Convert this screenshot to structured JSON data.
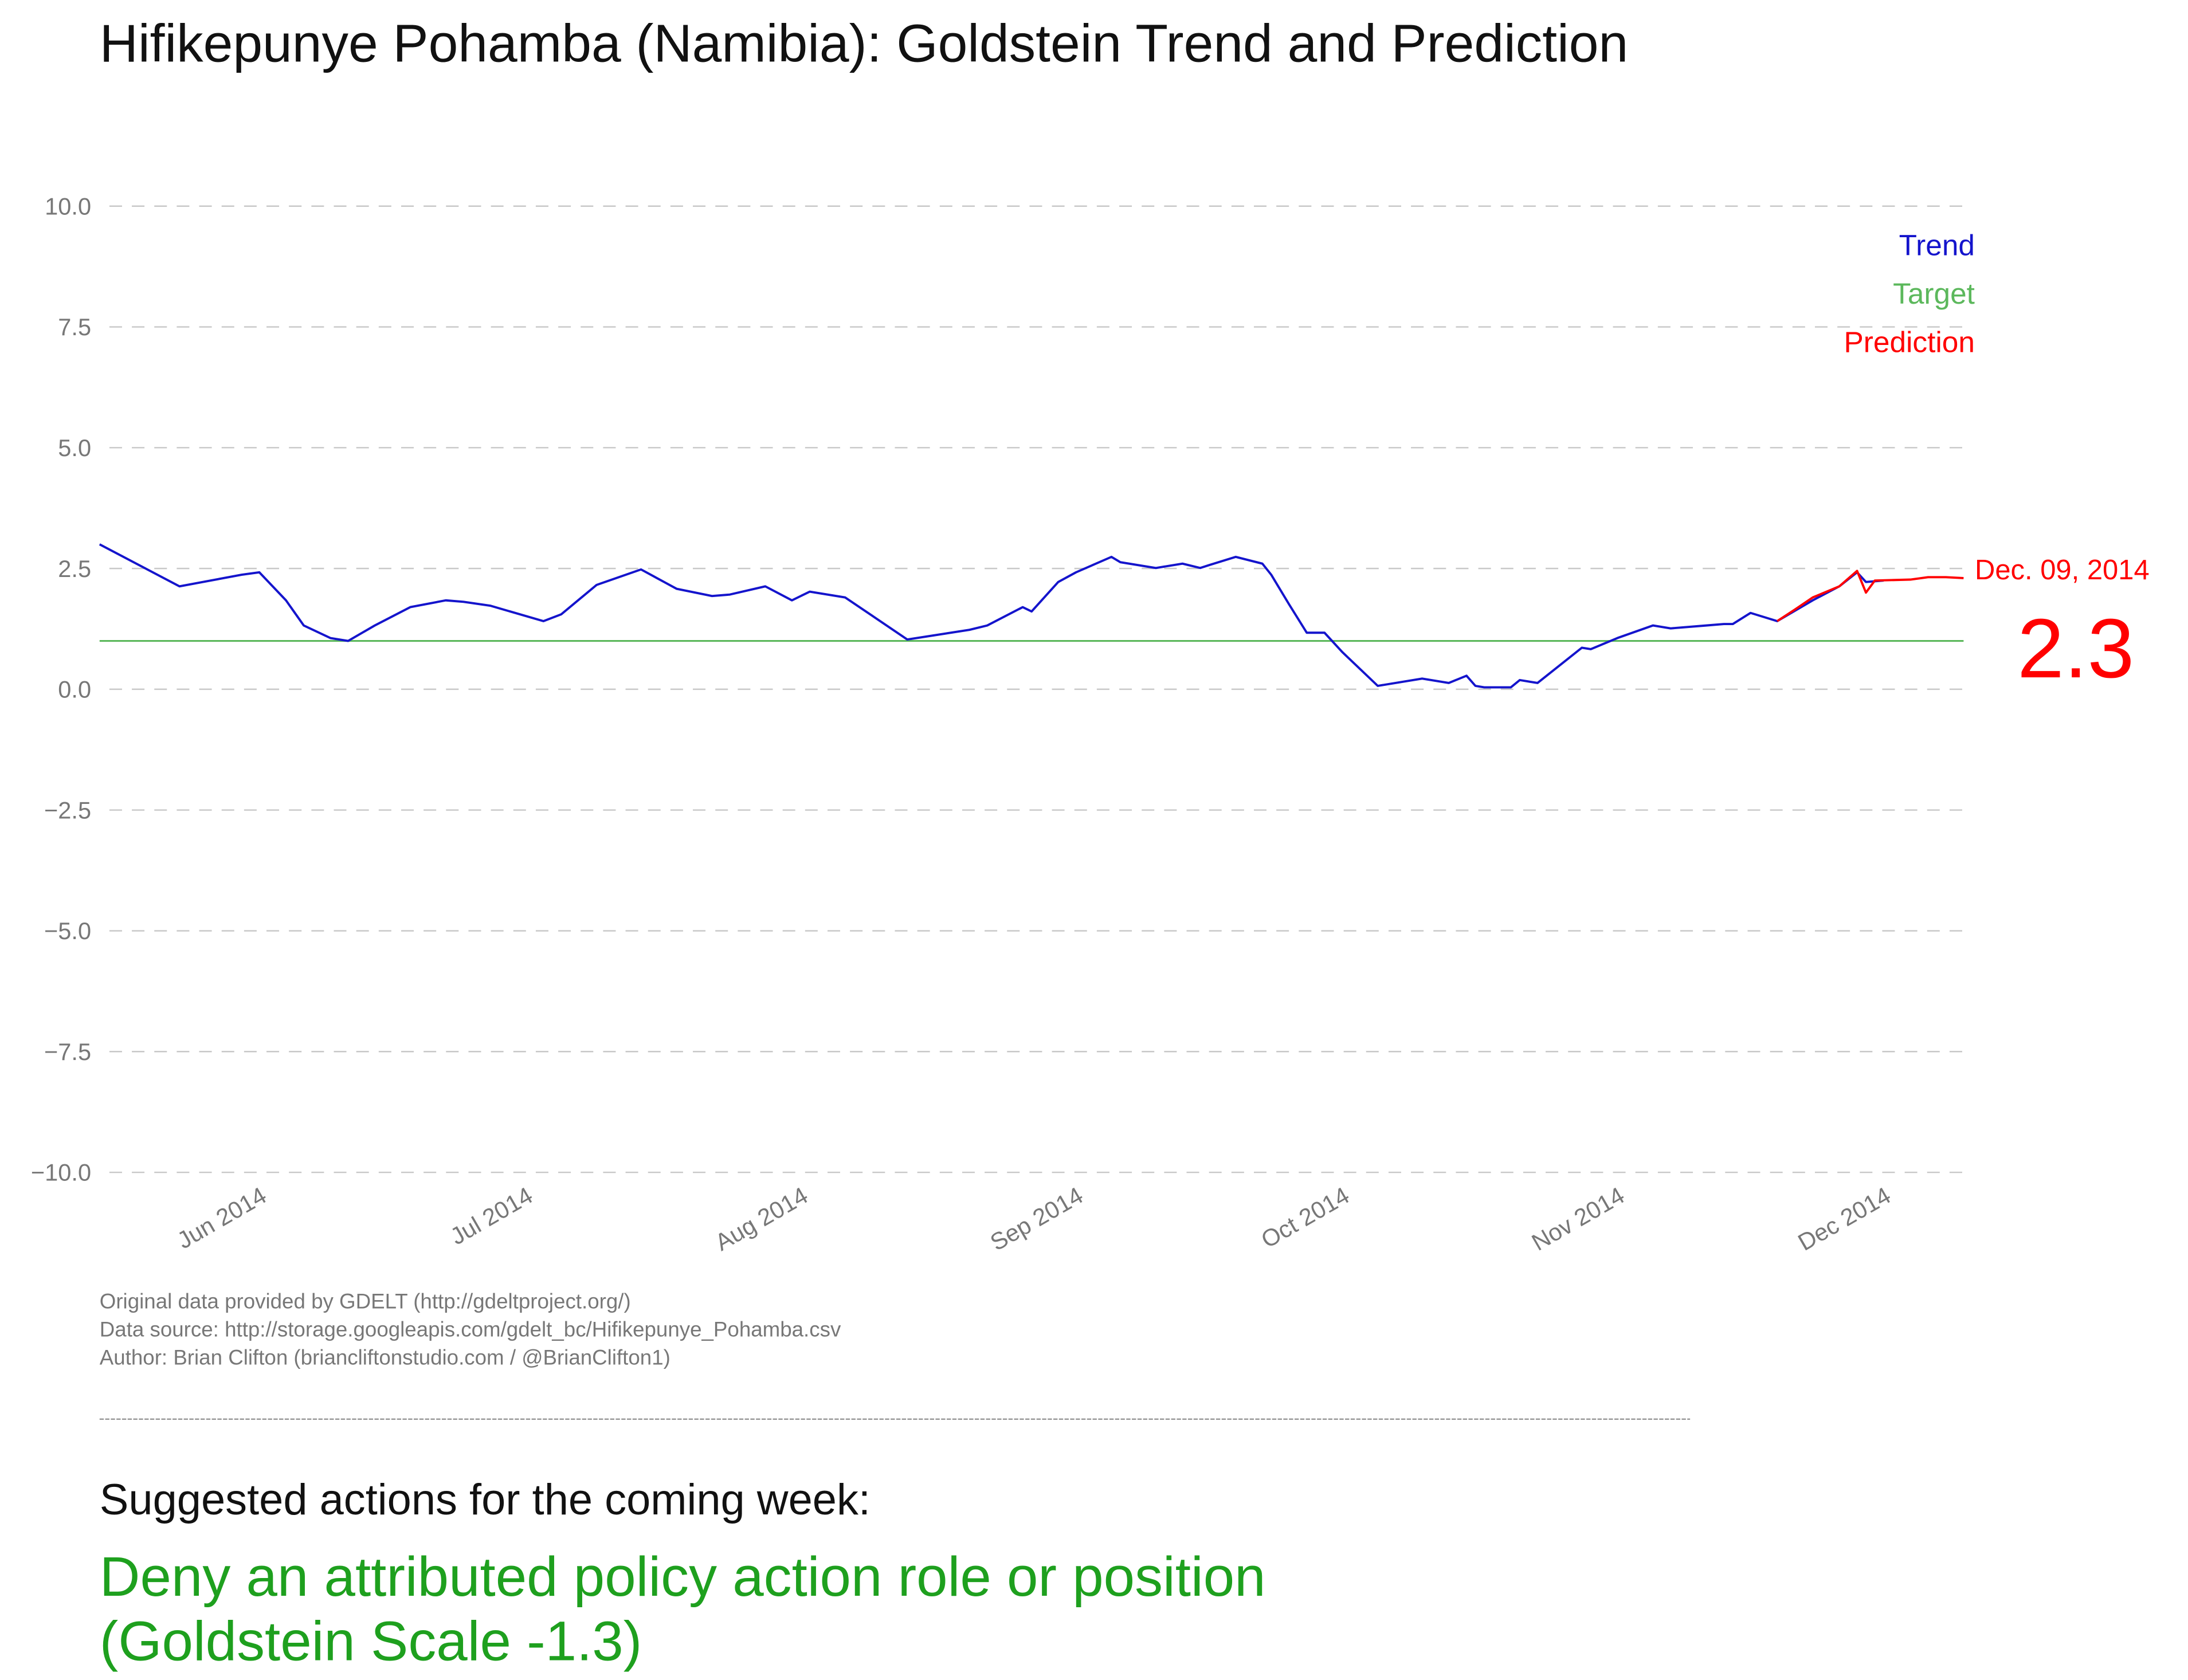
{
  "chart_data": {
    "type": "line",
    "title": "Hifikepunye Pohamba (Namibia): Goldstein Trend and Prediction",
    "xlim": [
      "2014-05-13",
      "2014-12-09"
    ],
    "xticks": [
      {
        "value": "2014-06-01",
        "label": "Jun 2014"
      },
      {
        "value": "2014-07-01",
        "label": "Jul 2014"
      },
      {
        "value": "2014-08-01",
        "label": "Aug 2014"
      },
      {
        "value": "2014-09-01",
        "label": "Sep 2014"
      },
      {
        "value": "2014-10-01",
        "label": "Oct 2014"
      },
      {
        "value": "2014-11-01",
        "label": "Nov 2014"
      },
      {
        "value": "2014-12-01",
        "label": "Dec 2014"
      }
    ],
    "ylim": [
      -10,
      10
    ],
    "yticks": [
      {
        "value": -10,
        "label": "−10.0"
      },
      {
        "value": -7.5,
        "label": "−7.5"
      },
      {
        "value": -5,
        "label": "−5.0"
      },
      {
        "value": -2.5,
        "label": "−2.5"
      },
      {
        "value": 0,
        "label": "0.0"
      },
      {
        "value": 2.5,
        "label": "2.5"
      },
      {
        "value": 5,
        "label": "5.0"
      },
      {
        "value": 7.5,
        "label": "7.5"
      },
      {
        "value": 10,
        "label": "10.0"
      }
    ],
    "grid": true,
    "legend": "upper right",
    "series": [
      {
        "name": "Trend",
        "color": "#1414cc",
        "x": [
          "2014-05-13",
          "2014-05-22",
          "2014-05-29",
          "2014-05-31",
          "2014-06-03",
          "2014-06-04",
          "2014-06-05",
          "2014-06-08",
          "2014-06-10",
          "2014-06-13",
          "2014-06-17",
          "2014-06-21",
          "2014-06-23",
          "2014-06-26",
          "2014-07-02",
          "2014-07-04",
          "2014-07-08",
          "2014-07-13",
          "2014-07-17",
          "2014-07-21",
          "2014-07-23",
          "2014-07-27",
          "2014-07-30",
          "2014-08-01",
          "2014-08-05",
          "2014-08-12",
          "2014-08-19",
          "2014-08-21",
          "2014-08-25",
          "2014-08-26",
          "2014-08-29",
          "2014-08-31",
          "2014-09-04",
          "2014-09-05",
          "2014-09-09",
          "2014-09-12",
          "2014-09-14",
          "2014-09-15",
          "2014-09-18",
          "2014-09-21",
          "2014-09-22",
          "2014-09-24",
          "2014-09-26",
          "2014-09-28",
          "2014-09-30",
          "2014-10-04",
          "2014-10-09",
          "2014-10-12",
          "2014-10-14",
          "2014-10-15",
          "2014-10-16",
          "2014-10-19",
          "2014-10-20",
          "2014-10-22",
          "2014-10-27",
          "2014-10-28",
          "2014-10-31",
          "2014-11-04",
          "2014-11-06",
          "2014-11-10",
          "2014-11-12",
          "2014-11-13",
          "2014-11-15",
          "2014-11-18",
          "2014-11-22",
          "2014-11-25",
          "2014-11-27",
          "2014-11-28",
          "2014-11-30"
        ],
        "values": [
          3.0,
          2.13,
          2.37,
          2.42,
          1.84,
          1.58,
          1.32,
          1.06,
          1.0,
          1.32,
          1.7,
          1.84,
          1.81,
          1.73,
          1.41,
          1.55,
          2.16,
          2.48,
          2.08,
          1.93,
          1.96,
          2.13,
          1.84,
          2.02,
          1.9,
          1.03,
          1.23,
          1.32,
          1.7,
          1.61,
          2.22,
          2.42,
          2.74,
          2.63,
          2.51,
          2.6,
          2.51,
          2.57,
          2.74,
          2.6,
          2.37,
          1.76,
          1.17,
          1.17,
          0.77,
          0.07,
          0.22,
          0.13,
          0.28,
          0.07,
          0.04,
          0.04,
          0.19,
          0.13,
          0.86,
          0.83,
          1.06,
          1.32,
          1.26,
          1.32,
          1.35,
          1.35,
          1.58,
          1.41,
          1.84,
          2.13,
          2.42,
          2.22,
          2.25
        ]
      },
      {
        "name": "Target",
        "color": "#5cb85c",
        "x": [
          "2014-05-13",
          "2014-12-09"
        ],
        "values": [
          1.0,
          1.0
        ]
      },
      {
        "name": "Prediction",
        "color": "#ff0000",
        "x": [
          "2014-11-18",
          "2014-11-20",
          "2014-11-22",
          "2014-11-25",
          "2014-11-27",
          "2014-11-28",
          "2014-11-29",
          "2014-12-03",
          "2014-12-05",
          "2014-12-07",
          "2014-12-09"
        ],
        "values": [
          1.41,
          1.65,
          1.9,
          2.13,
          2.45,
          2.0,
          2.25,
          2.27,
          2.32,
          2.32,
          2.3
        ]
      }
    ],
    "annotation": "Dec. 09, 2014"
  },
  "notes": [
    "Original data provided by GDELT (http://gdeltproject.org/)",
    "Data source: http://storage.googleapis.com/gdelt_bc/Hifikepunye_Pohamba.csv",
    "Author: Brian Clifton (briancliftonstudio.com / @BrianClifton1)"
  ],
  "suggestion": {
    "heading": "Suggested actions for the coming week:",
    "lines": [
      "Deny an attributed policy action role or position",
      "(Goldstein Scale -1.3)"
    ]
  }
}
